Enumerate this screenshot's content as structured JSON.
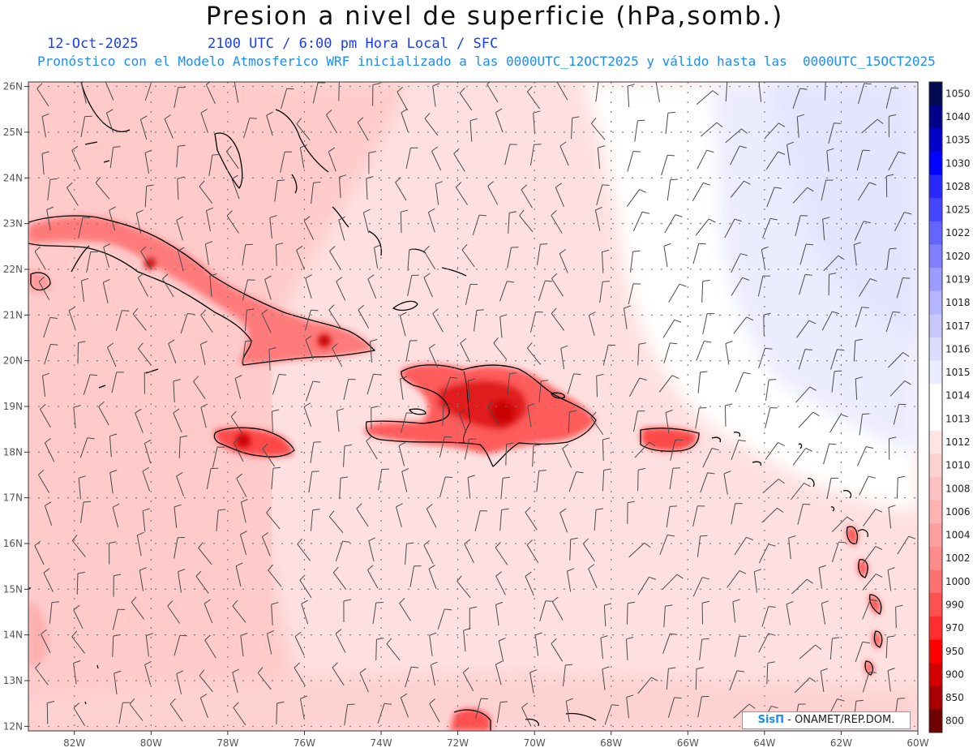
{
  "header": {
    "title": "Presion a nivel de superficie (hPa,somb.)",
    "date": "12-Oct-2025",
    "time_info": "2100 UTC / 6:00 pm Hora Local / SFC",
    "model_info": "Pronóstico con el Modelo Atmosferico WRF inicializado a las 0000UTC_12OCT2025 y válido hasta las  0000UTC_15OCT2025"
  },
  "map": {
    "lon_labels": [
      "82W",
      "80W",
      "78W",
      "76W",
      "74W",
      "72W",
      "70W",
      "68W",
      "66W",
      "64W",
      "62W",
      "60W"
    ],
    "lat_labels": [
      "26N",
      "25N",
      "24N",
      "23N",
      "22N",
      "21N",
      "20N",
      "19N",
      "18N",
      "17N",
      "16N",
      "15N",
      "14N",
      "13N",
      "12N"
    ],
    "lon_range": [
      -83.2,
      -60.0
    ],
    "lat_range": [
      11.9,
      26.1
    ],
    "features": [
      {
        "name": "cuba",
        "label": ""
      },
      {
        "name": "hispaniola",
        "label": ""
      },
      {
        "name": "jamaica",
        "label": ""
      },
      {
        "name": "puerto-rico",
        "label": ""
      }
    ]
  },
  "colorbar": {
    "labels": [
      "1050",
      "1040",
      "1035",
      "1030",
      "1028",
      "1025",
      "1022",
      "1020",
      "1019",
      "1018",
      "1017",
      "1016",
      "1015",
      "1014",
      "1013",
      "1012",
      "1010",
      "1008",
      "1006",
      "1004",
      "1002",
      "1000",
      "990",
      "970",
      "950",
      "900",
      "850",
      "800"
    ],
    "colors": [
      "#020a52",
      "#00008b",
      "#0000c8",
      "#0000ff",
      "#2828ff",
      "#4646ff",
      "#6464ff",
      "#8080ff",
      "#9c9cff",
      "#b4b4ff",
      "#c8c8ff",
      "#dcdcff",
      "#ececff",
      "#ffffff",
      "#ffffff",
      "#ffe4e4",
      "#ffd2d2",
      "#ffc2c2",
      "#ffb2b2",
      "#ffa0a0",
      "#ff8c8c",
      "#ff7070",
      "#ff5050",
      "#ff2d2d",
      "#ff0000",
      "#d40000",
      "#a80000",
      "#6e0000"
    ]
  },
  "credit": {
    "brand": "SisΠ",
    "text": "- ONAMET/REP.DOM."
  }
}
